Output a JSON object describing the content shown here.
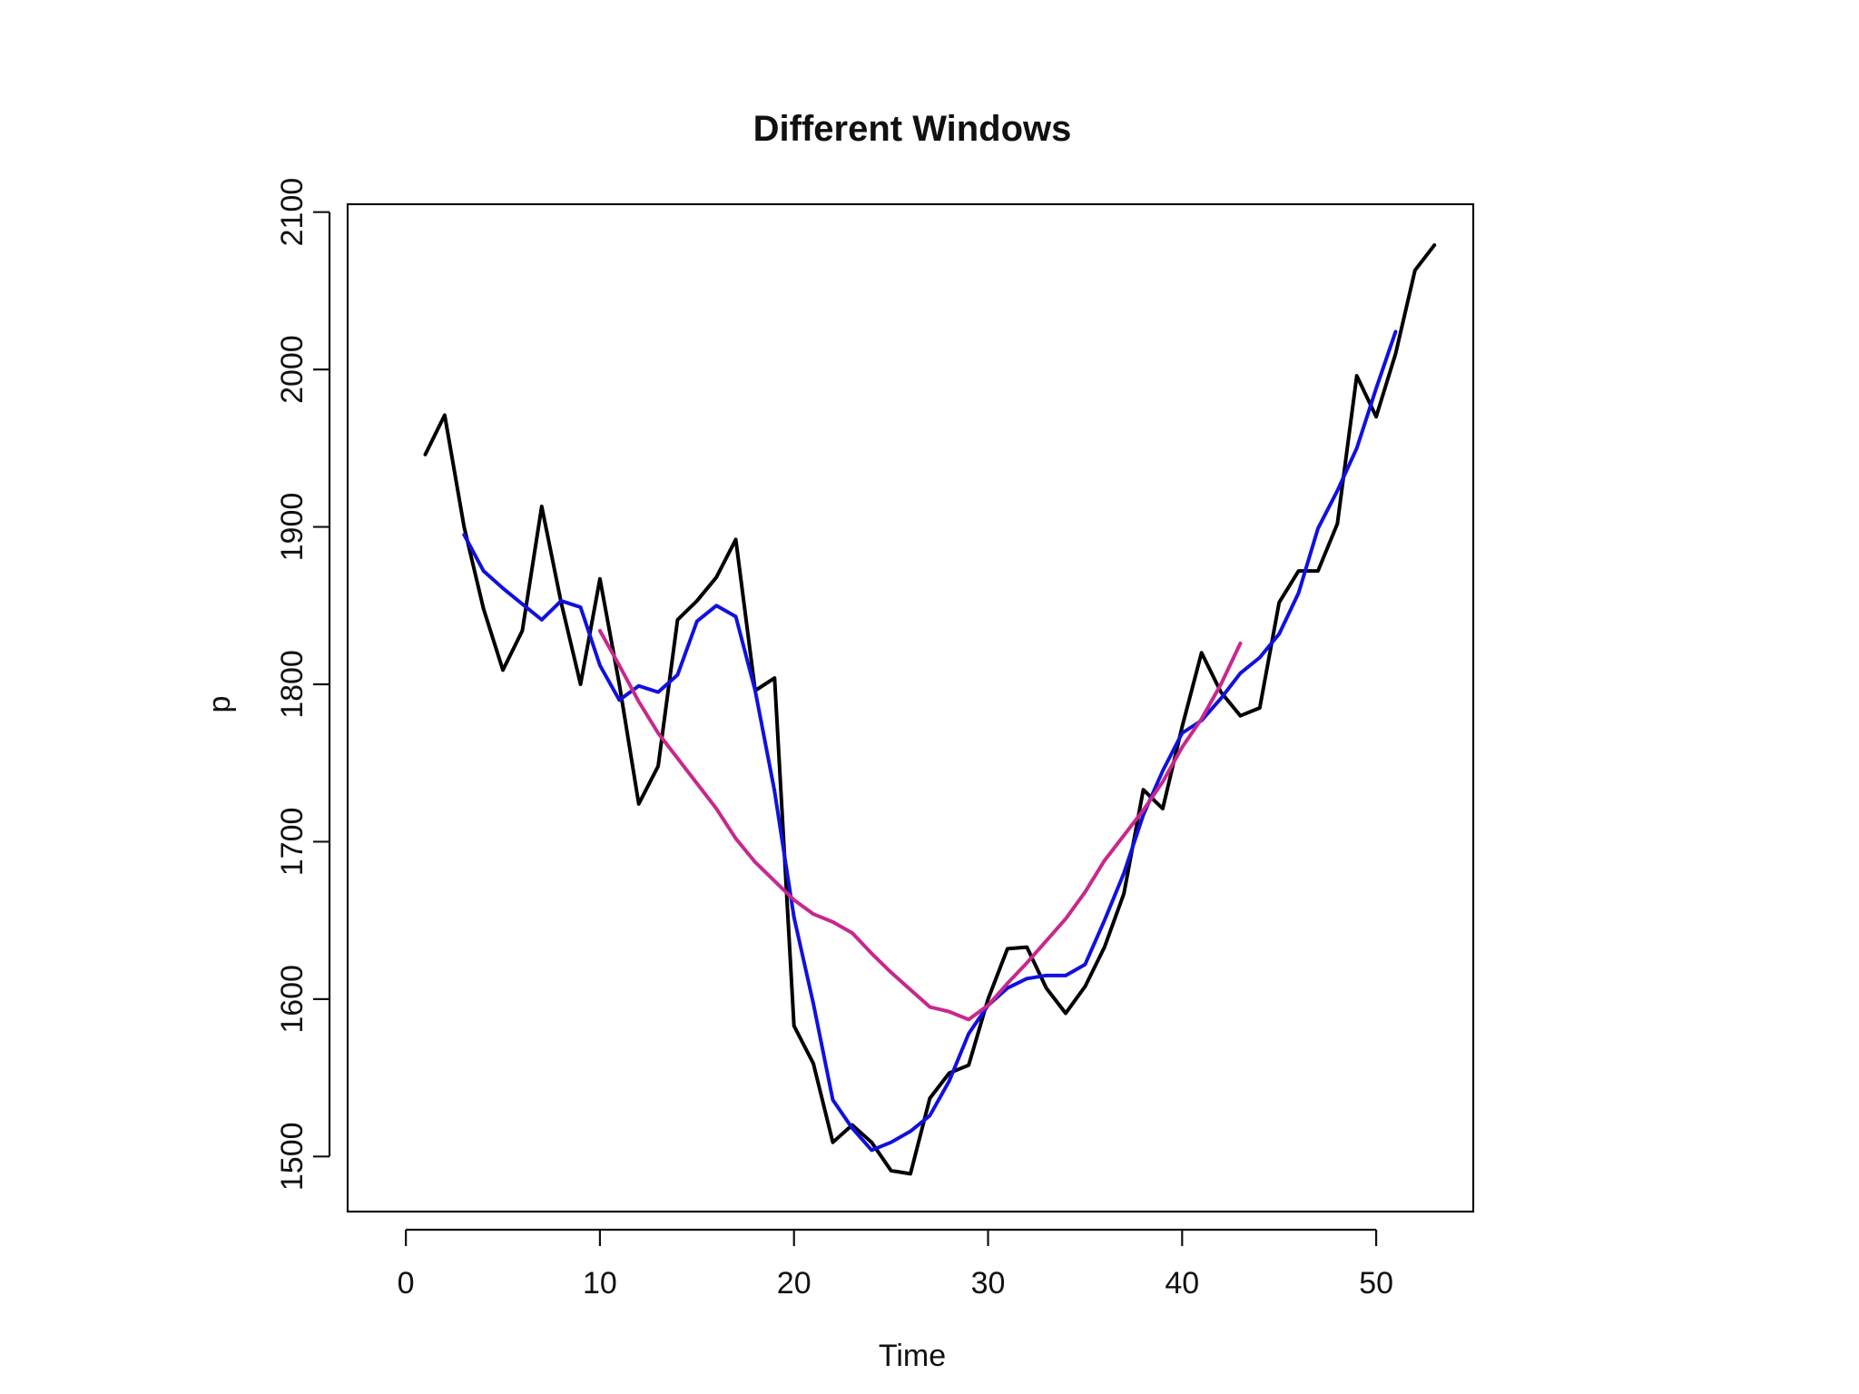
{
  "chart_data": {
    "type": "line",
    "title": "Different Windows",
    "xlabel": "Time",
    "ylabel": "p",
    "xlim": [
      -3,
      55
    ],
    "ylim": [
      1465,
      2105
    ],
    "x_ticks": [
      0,
      10,
      20,
      30,
      40,
      50
    ],
    "y_ticks": [
      1500,
      1600,
      1700,
      1800,
      1900,
      2000,
      2100
    ],
    "x_tick_labels": [
      "0",
      "10",
      "20",
      "30",
      "40",
      "50"
    ],
    "y_tick_labels": [
      "1500",
      "1600",
      "1700",
      "1800",
      "1900",
      "2000",
      "2100"
    ],
    "grid": false,
    "legend": "none",
    "series": [
      {
        "color": "#000000",
        "x": [
          1,
          2,
          3,
          4,
          5,
          6,
          7,
          8,
          9,
          10,
          11,
          12,
          13,
          14,
          15,
          16,
          17,
          18,
          19,
          20,
          21,
          22,
          23,
          24,
          25,
          26,
          27,
          28,
          29,
          30,
          31,
          32,
          33,
          34,
          35,
          36,
          37,
          38,
          39,
          40,
          41,
          42,
          43,
          44,
          45,
          46,
          47,
          48,
          49,
          50,
          51,
          52,
          53
        ],
        "values": [
          1946,
          1971,
          1900,
          1848,
          1809,
          1834,
          1913,
          1852,
          1800,
          1867,
          1800,
          1724,
          1748,
          1841,
          1853,
          1868,
          1892,
          1796,
          1804,
          1583,
          1559,
          1509,
          1520,
          1509,
          1491,
          1489,
          1537,
          1553,
          1558,
          1600,
          1632,
          1633,
          1607,
          1591,
          1608,
          1633,
          1667,
          1733,
          1721,
          1773,
          1820,
          1795,
          1780,
          1785,
          1852,
          1872,
          1872,
          1902,
          1996,
          1970,
          2010,
          2063,
          2079
        ]
      },
      {
        "color": "#1010e0",
        "x": [
          3,
          4,
          5,
          6,
          7,
          8,
          9,
          10,
          11,
          12,
          13,
          14,
          15,
          16,
          17,
          18,
          19,
          20,
          21,
          22,
          23,
          24,
          25,
          26,
          27,
          28,
          29,
          30,
          31,
          32,
          33,
          34,
          35,
          36,
          37,
          38,
          39,
          40,
          41,
          42,
          43,
          44,
          45,
          46,
          47,
          48,
          49,
          50,
          51
        ],
        "values": [
          1895,
          1872,
          1861,
          1851,
          1841,
          1853,
          1849,
          1812,
          1790,
          1799,
          1795,
          1806,
          1840,
          1850,
          1843,
          1796,
          1732,
          1652,
          1597,
          1536,
          1518,
          1504,
          1509,
          1516,
          1526,
          1548,
          1578,
          1596,
          1607,
          1613,
          1615,
          1615,
          1622,
          1650,
          1680,
          1717,
          1745,
          1769,
          1777,
          1791,
          1807,
          1817,
          1832,
          1858,
          1899,
          1923,
          1950,
          1988,
          2024
        ]
      },
      {
        "color": "#c8288c",
        "x": [
          10,
          11,
          12,
          13,
          14,
          15,
          16,
          17,
          18,
          19,
          20,
          21,
          22,
          23,
          24,
          25,
          26,
          27,
          28,
          29,
          30,
          31,
          32,
          33,
          34,
          35,
          36,
          37,
          38,
          39,
          40,
          41,
          42,
          43
        ],
        "values": [
          1834,
          1812,
          1789,
          1769,
          1753,
          1737,
          1721,
          1702,
          1687,
          1675,
          1663,
          1654,
          1649,
          1642,
          1629,
          1617,
          1606,
          1595,
          1592,
          1587,
          1596,
          1610,
          1623,
          1637,
          1651,
          1668,
          1688,
          1704,
          1720,
          1738,
          1760,
          1778,
          1800,
          1826
        ]
      }
    ]
  }
}
